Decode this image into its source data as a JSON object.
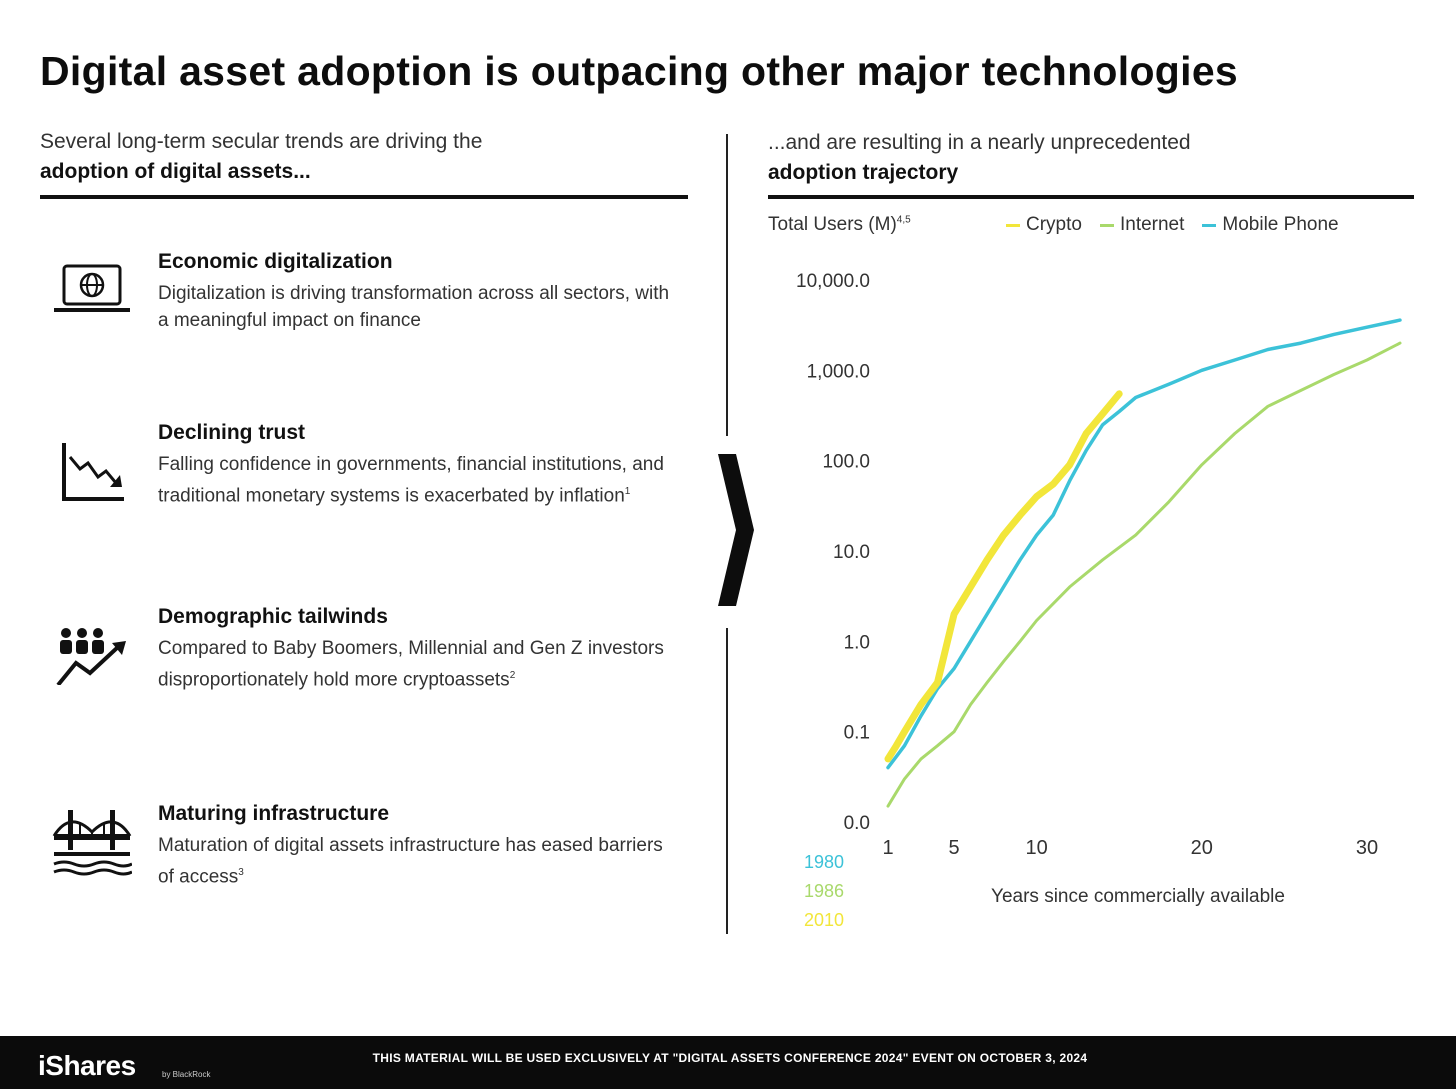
{
  "title": "Digital asset adoption is outpacing other major technologies",
  "left": {
    "intro_line1": "Several long-term secular trends are driving the",
    "intro_line2": "adoption of digital assets...",
    "trends": [
      {
        "icon": "laptop-globe-icon",
        "title": "Economic digitalization",
        "body": "Digitalization is driving transformation across all sectors, with a meaningful impact on finance",
        "note": ""
      },
      {
        "icon": "declining-chart-icon",
        "title": "Declining trust",
        "body": "Falling confidence in governments, financial institutions, and traditional monetary systems is exacerbated by inflation",
        "note": "1"
      },
      {
        "icon": "people-growth-icon",
        "title": "Demographic tailwinds",
        "body": "Compared to Baby Boomers, Millennial and Gen Z investors disproportionately hold more cryptoassets",
        "note": "2"
      },
      {
        "icon": "bridge-icon",
        "title": "Maturing infrastructure",
        "body": "Maturation of digital assets infrastructure has eased barriers of access",
        "note": "3"
      }
    ]
  },
  "right": {
    "intro_line1": "...and are resulting in a nearly unprecedented",
    "intro_line2": "adoption trajectory"
  },
  "colors": {
    "crypto": "#f2e63a",
    "internet": "#a9d96b",
    "mobile": "#3cc2d8",
    "text": "#111111"
  },
  "chart_data": {
    "type": "line",
    "ylabel": "Total Users (M)",
    "ylabel_note": "4,5",
    "xlabel": "Years since commercially available",
    "y_scale": "log",
    "ylim": [
      0.01,
      10000
    ],
    "xlim": [
      1,
      32
    ],
    "y_ticks": [
      0.01,
      0.1,
      1,
      10,
      100,
      1000,
      10000
    ],
    "y_tick_labels": [
      "0.0",
      "0.1",
      "1.0",
      "10.0",
      "100.0",
      "1,000.0",
      "10,000.0"
    ],
    "x_ticks": [
      1,
      5,
      10,
      20,
      30
    ],
    "x_tick_labels": [
      "1",
      "5",
      "10",
      "20",
      "30"
    ],
    "grid": false,
    "legend_position": "top-right",
    "start_years": [
      {
        "series": "Mobile Phone",
        "label": "1980"
      },
      {
        "series": "Internet",
        "label": "1986"
      },
      {
        "series": "Crypto",
        "label": "2010"
      }
    ],
    "series": [
      {
        "name": "Crypto",
        "color": "#f2e63a",
        "x": [
          1,
          1.5,
          2,
          3,
          4,
          5,
          6,
          7,
          8,
          9,
          10,
          11,
          12,
          13,
          14,
          15
        ],
        "y": [
          0.05,
          0.07,
          0.1,
          0.2,
          0.35,
          2,
          4,
          8,
          15,
          25,
          40,
          55,
          90,
          200,
          330,
          550
        ]
      },
      {
        "name": "Internet",
        "color": "#a9d96b",
        "x": [
          1,
          2,
          3,
          4,
          5,
          6,
          7,
          8,
          9,
          10,
          12,
          14,
          16,
          18,
          20,
          22,
          24,
          26,
          28,
          30,
          32
        ],
        "y": [
          0.015,
          0.03,
          0.05,
          0.07,
          0.1,
          0.2,
          0.35,
          0.6,
          1,
          1.7,
          4,
          8,
          15,
          35,
          90,
          200,
          400,
          600,
          900,
          1300,
          2000
        ]
      },
      {
        "name": "Mobile Phone",
        "color": "#3cc2d8",
        "x": [
          1,
          2,
          3,
          4,
          5,
          6,
          7,
          8,
          9,
          10,
          11,
          12,
          13,
          14,
          15,
          16,
          18,
          20,
          22,
          24,
          26,
          28,
          30,
          32
        ],
        "y": [
          0.04,
          0.07,
          0.15,
          0.3,
          0.5,
          1,
          2,
          4,
          8,
          15,
          25,
          60,
          130,
          250,
          350,
          500,
          700,
          1000,
          1300,
          1700,
          2000,
          2500,
          3000,
          3600
        ]
      }
    ]
  },
  "footer": {
    "logo": "iShares",
    "logo_sub": "by BlackRock",
    "disclaimer": "THIS MATERIAL WILL BE USED EXCLUSIVELY AT \"DIGITAL ASSETS CONFERENCE 2024\" EVENT ON OCTOBER 3, 2024"
  }
}
